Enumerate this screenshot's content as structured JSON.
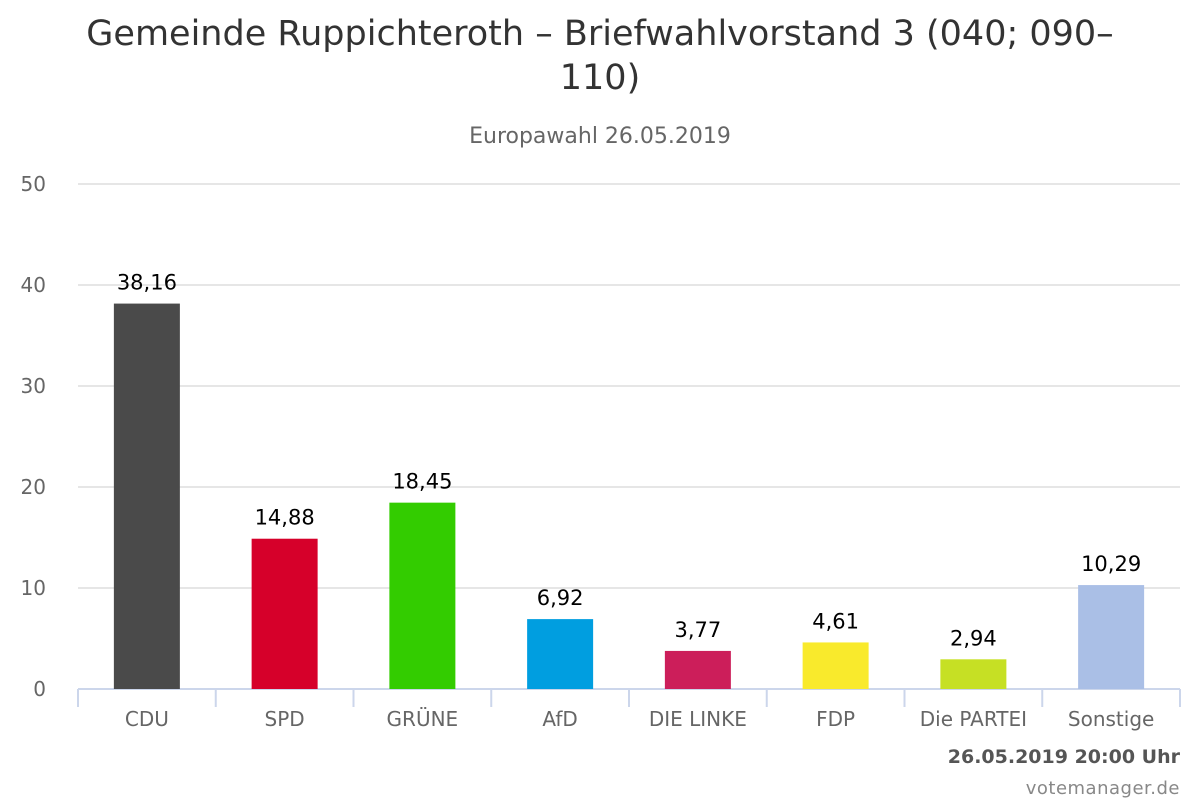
{
  "chart_data": {
    "type": "bar",
    "title": "Gemeinde Ruppichteroth – Briefwahlvorstand 3 (040; 090–110)",
    "subtitle": "Europawahl 26.05.2019",
    "categories": [
      "CDU",
      "SPD",
      "GRÜNE",
      "AfD",
      "DIE LINKE",
      "FDP",
      "Die PARTEI",
      "Sonstige"
    ],
    "values": [
      38.16,
      14.88,
      18.45,
      6.92,
      3.77,
      4.61,
      2.94,
      10.29
    ],
    "value_labels": [
      "38,16",
      "14,88",
      "18,45",
      "6,92",
      "3,77",
      "4,61",
      "2,94",
      "10,29"
    ],
    "colors": [
      "#4a4a4a",
      "#d6002a",
      "#33cc00",
      "#009ee0",
      "#cc1e5a",
      "#f9ea2c",
      "#c6e024",
      "#aabfe6"
    ],
    "ylim": [
      0,
      50
    ],
    "yticks": [
      0,
      10,
      20,
      30,
      40,
      50
    ],
    "xlabel": "",
    "ylabel": "",
    "grid": true,
    "legend": "none"
  },
  "footer": {
    "timestamp": "26.05.2019 20:00 Uhr",
    "credit": "votemanager.de"
  }
}
